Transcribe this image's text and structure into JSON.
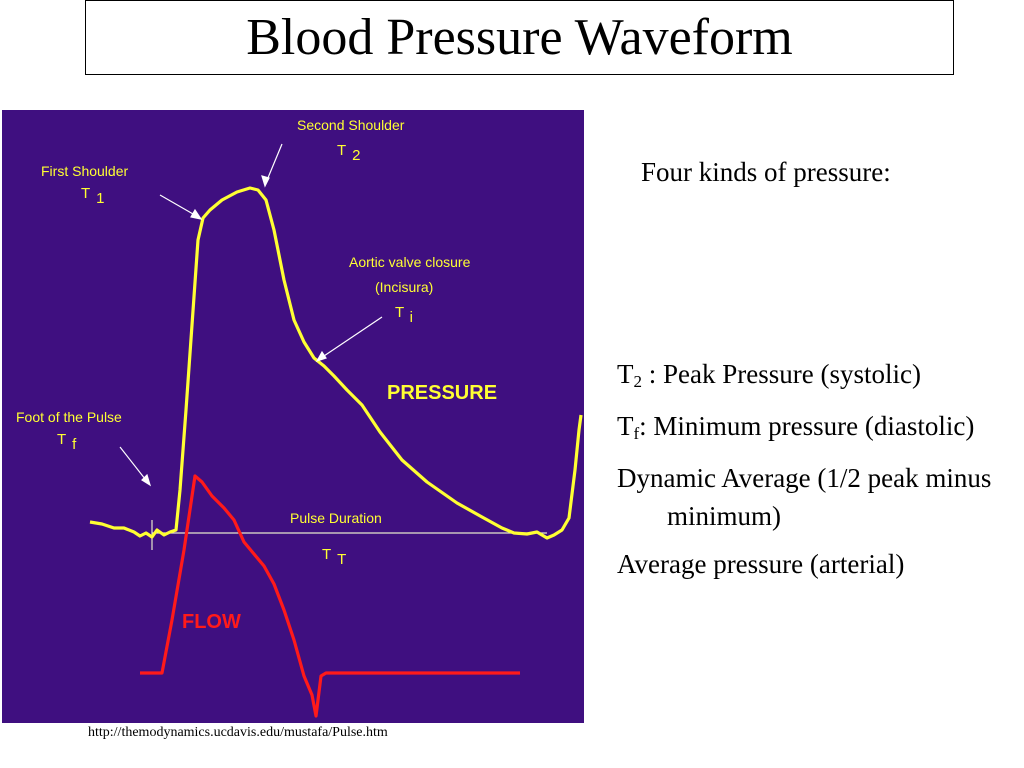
{
  "slide": {
    "title": "Blood Pressure Waveform",
    "source_url": "http://themodynamics.ucdavis.edu/mustafa/Pulse.htm"
  },
  "figure": {
    "background_color": "#3f0f80",
    "pressure_color": "#ffff33",
    "flow_color": "#ff1a1a",
    "axis_color": "#e6e6cc",
    "labels": {
      "second_shoulder": "Second Shoulder",
      "first_shoulder": "First Shoulder",
      "aortic_valve": "Aortic valve closure",
      "incisura": "(Incisura)",
      "foot": "Foot of the Pulse",
      "pressure": "PRESSURE",
      "pulse_duration": "Pulse Duration",
      "flow": "FLOW"
    },
    "symbols": {
      "t2": {
        "base": "T",
        "sub": "2"
      },
      "t1": {
        "base": "T",
        "sub": "1"
      },
      "ti": {
        "base": "T",
        "sub": "i"
      },
      "tf": {
        "base": "T",
        "sub": "f"
      },
      "tt": {
        "base": "T",
        "sub": "T"
      }
    }
  },
  "notes": {
    "intro": "Four kinds of pressure:",
    "items": [
      {
        "base": "T",
        "sub": "2",
        "text": " : Peak Pressure (systolic)"
      },
      {
        "base": "T",
        "sub": "f",
        "text": ": Minimum pressure (diastolic)"
      },
      {
        "text": "Dynamic Average (1/2 peak minus minimum)"
      },
      {
        "text": "Average pressure (arterial)"
      }
    ]
  }
}
